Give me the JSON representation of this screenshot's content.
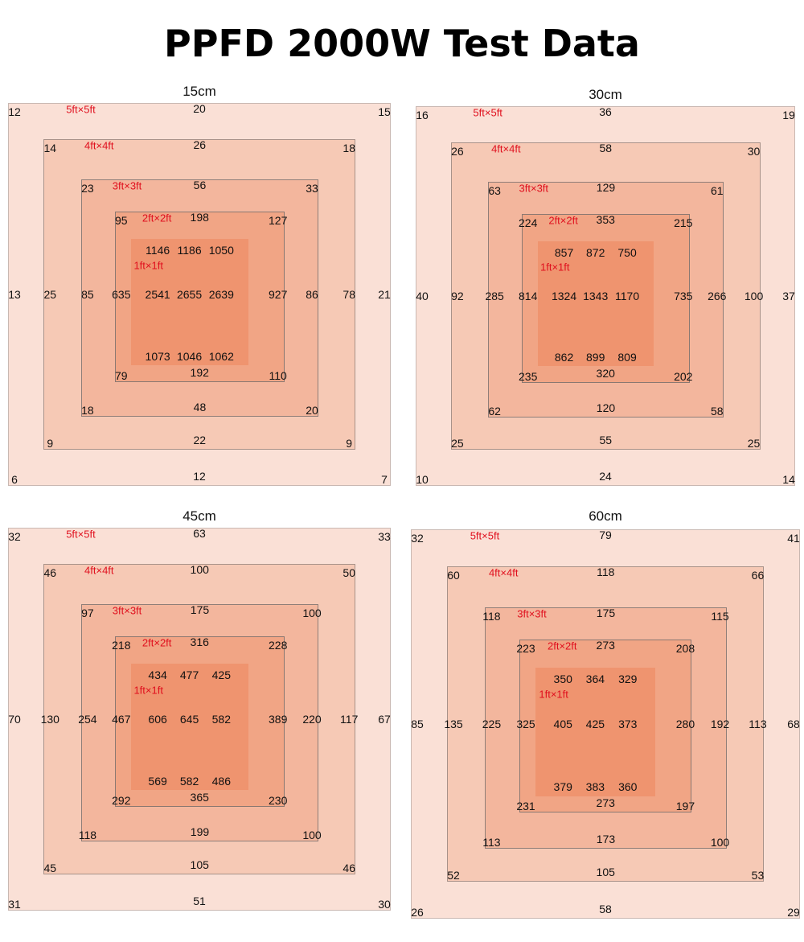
{
  "title": "PPFD 2000W Test Data",
  "colors": {
    "label_red": "#e0101e",
    "zone_5ft": "#fae0d6",
    "zone_4ft": "#f6c9b5",
    "zone_3ft": "#f3b69d",
    "zone_2ft": "#f1a585",
    "zone_1ft": "#ef946f"
  },
  "chart_data": [
    {
      "type": "heatmap",
      "title": "15cm",
      "zone_labels": [
        "5ft×5ft",
        "4ft×4ft",
        "3ft×3ft",
        "2ft×2ft",
        "1ft×1ft"
      ],
      "zones": {
        "5ft": {
          "top": [
            "12",
            "20",
            "15"
          ],
          "middle": [
            "13",
            "21"
          ],
          "bottom": [
            "6",
            "12",
            "7"
          ]
        },
        "4ft": {
          "top": [
            "14",
            "26",
            "18"
          ],
          "middle": [
            "25",
            "78"
          ],
          "bottom": [
            "9",
            "22",
            "9"
          ]
        },
        "3ft": {
          "top": [
            "23",
            "56",
            "33"
          ],
          "middle": [
            "85",
            "86"
          ],
          "bottom": [
            "18",
            "48",
            "20"
          ]
        },
        "2ft": {
          "top": [
            "95",
            "198",
            "127"
          ],
          "middle": [
            "635",
            "927"
          ],
          "bottom": [
            "79",
            "192",
            "110"
          ]
        },
        "1ft": {
          "top": [
            "1146",
            "1186",
            "1050"
          ],
          "middle": [
            "2541",
            "2655",
            "2639"
          ],
          "bottom": [
            "1073",
            "1046",
            "1062"
          ]
        }
      }
    },
    {
      "type": "heatmap",
      "title": "30cm",
      "zone_labels": [
        "5ft×5ft",
        "4ft×4ft",
        "3ft×3ft",
        "2ft×2ft",
        "1ft×1ft"
      ],
      "zones": {
        "5ft": {
          "top": [
            "16",
            "36",
            "19"
          ],
          "middle": [
            "40",
            "37"
          ],
          "bottom": [
            "10",
            "24",
            "14"
          ]
        },
        "4ft": {
          "top": [
            "26",
            "58",
            "30"
          ],
          "middle": [
            "92",
            "100"
          ],
          "bottom": [
            "25",
            "55",
            "25"
          ]
        },
        "3ft": {
          "top": [
            "63",
            "129",
            "61"
          ],
          "middle": [
            "285",
            "266"
          ],
          "bottom": [
            "62",
            "120",
            "58"
          ]
        },
        "2ft": {
          "top": [
            "224",
            "353",
            "215"
          ],
          "middle": [
            "814",
            "735"
          ],
          "bottom": [
            "235",
            "320",
            "202"
          ]
        },
        "1ft": {
          "top": [
            "857",
            "872",
            "750"
          ],
          "middle": [
            "1324",
            "1343",
            "1170"
          ],
          "bottom": [
            "862",
            "899",
            "809"
          ]
        }
      }
    },
    {
      "type": "heatmap",
      "title": "45cm",
      "zone_labels": [
        "5ft×5ft",
        "4ft×4ft",
        "3ft×3ft",
        "2ft×2ft",
        "1ft×1ft"
      ],
      "zones": {
        "5ft": {
          "top": [
            "32",
            "63",
            "33"
          ],
          "middle": [
            "70",
            "67"
          ],
          "bottom": [
            "31",
            "51",
            "30"
          ]
        },
        "4ft": {
          "top": [
            "46",
            "100",
            "50"
          ],
          "middle": [
            "130",
            "117"
          ],
          "bottom": [
            "45",
            "105",
            "46"
          ]
        },
        "3ft": {
          "top": [
            "97",
            "175",
            "100"
          ],
          "middle": [
            "254",
            "220"
          ],
          "bottom": [
            "118",
            "199",
            "100"
          ]
        },
        "2ft": {
          "top": [
            "218",
            "316",
            "228"
          ],
          "middle": [
            "467",
            "389"
          ],
          "bottom": [
            "292",
            "365",
            "230"
          ]
        },
        "1ft": {
          "top": [
            "434",
            "477",
            "425"
          ],
          "middle": [
            "606",
            "645",
            "582"
          ],
          "bottom": [
            "569",
            "582",
            "486"
          ]
        }
      }
    },
    {
      "type": "heatmap",
      "title": "60cm",
      "zone_labels": [
        "5ft×5ft",
        "4ft×4ft",
        "3ft×3ft",
        "2ft×2ft",
        "1ft×1ft"
      ],
      "zones": {
        "5ft": {
          "top": [
            "32",
            "79",
            "41"
          ],
          "middle": [
            "85",
            "68"
          ],
          "bottom": [
            "26",
            "58",
            "29"
          ]
        },
        "4ft": {
          "top": [
            "60",
            "118",
            "66"
          ],
          "middle": [
            "135",
            "113"
          ],
          "bottom": [
            "52",
            "105",
            "53"
          ]
        },
        "3ft": {
          "top": [
            "118",
            "175",
            "115"
          ],
          "middle": [
            "225",
            "192"
          ],
          "bottom": [
            "113",
            "173",
            "100"
          ]
        },
        "2ft": {
          "top": [
            "223",
            "273",
            "208"
          ],
          "middle": [
            "325",
            "280"
          ],
          "bottom": [
            "231",
            "273",
            "197"
          ]
        },
        "1ft": {
          "top": [
            "350",
            "364",
            "329"
          ],
          "middle": [
            "405",
            "425",
            "373"
          ],
          "bottom": [
            "379",
            "383",
            "360"
          ]
        }
      }
    }
  ]
}
